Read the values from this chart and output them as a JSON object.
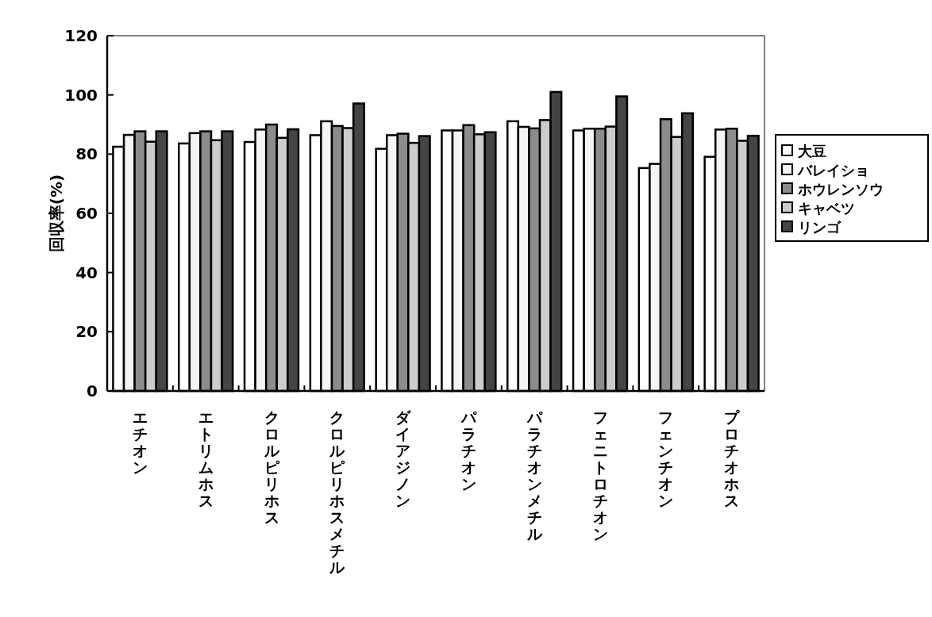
{
  "chart_data": {
    "type": "bar",
    "ylabel": "回収率(%)",
    "categories": [
      "エチオン",
      "エトリムホス",
      "クロルピリホス",
      "クロルピリホスメチル",
      "ダイアジノン",
      "パラチオン",
      "パラチオンメチル",
      "フェニトロチオン",
      "フェンチオン",
      "プロチオホス"
    ],
    "series": [
      {
        "name": "大豆",
        "color": "#ffffff",
        "values": [
          82.5,
          83.6,
          84.1,
          86.4,
          81.8,
          88.0,
          91.1,
          88.0,
          75.3,
          79.1
        ]
      },
      {
        "name": "バレイショ",
        "color": "#f4f4f4",
        "values": [
          86.5,
          87.1,
          88.3,
          91.1,
          86.4,
          88.0,
          89.2,
          88.6,
          76.7,
          88.3
        ]
      },
      {
        "name": "ホウレンソウ",
        "color": "#8c8c8c",
        "values": [
          87.7,
          87.7,
          90.0,
          89.5,
          86.9,
          89.8,
          88.7,
          88.6,
          91.8,
          88.6
        ]
      },
      {
        "name": "キャベツ",
        "color": "#cccccc",
        "values": [
          84.2,
          84.7,
          85.5,
          88.8,
          83.8,
          86.7,
          91.5,
          89.3,
          85.8,
          84.5
        ]
      },
      {
        "name": "リンゴ",
        "color": "#454545",
        "values": [
          87.7,
          87.7,
          88.4,
          97.1,
          86.1,
          87.4,
          101.0,
          99.5,
          93.8,
          86.2
        ]
      }
    ],
    "ylim": [
      0,
      120
    ],
    "yticks": [
      0,
      20,
      40,
      60,
      80,
      100,
      120
    ],
    "grid": false,
    "legend": "right"
  }
}
